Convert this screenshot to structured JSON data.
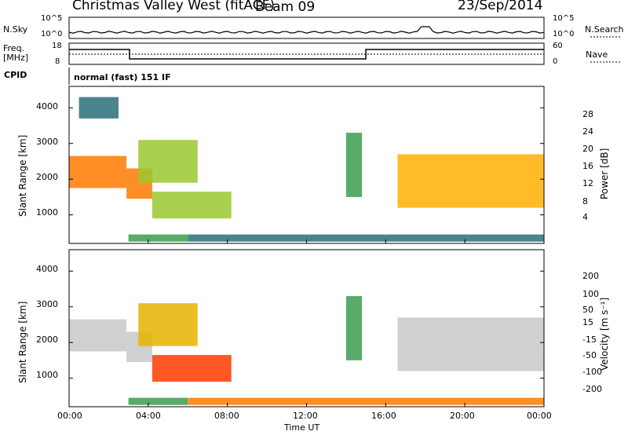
{
  "header": {
    "station": "Christmas Valley West (fitACF)",
    "beam": "Beam 09",
    "date": "23/Sep/2014"
  },
  "strips": {
    "nsky_label": "N.Sky",
    "nsearch_label": "N.Search",
    "noise_ticks": [
      "10^5",
      "10^0"
    ],
    "freq_label_1": "Freq.",
    "freq_label_2": "[MHz]",
    "freq_ticks": [
      "18",
      "8"
    ],
    "nave_label": "Nave",
    "nave_ticks": [
      "60",
      "0"
    ],
    "cpid_label": "CPID",
    "cpid_value": "normal (fast) 151 IF"
  },
  "axes": {
    "ylabel": "Slant Range [km]",
    "xlabel": "Time UT",
    "x_ticks": [
      "00:00",
      "04:00",
      "08:00",
      "12:00",
      "16:00",
      "20:00",
      "00:00"
    ],
    "y_ticks": [
      "1000",
      "2000",
      "3000",
      "4000"
    ]
  },
  "power_scale": {
    "label": "Power [dB]",
    "ticks": [
      "28",
      "24",
      "20",
      "16",
      "12",
      "8",
      "4"
    ],
    "colors": [
      "#e00000",
      "#ff3800",
      "#ff7a00",
      "#ffb000",
      "#e6d200",
      "#9ac830",
      "#3c9c50",
      "#2c6e78",
      "#1c3aa0",
      "#0012ff"
    ]
  },
  "velocity_scale": {
    "label": "Velocity [m s⁻¹]",
    "ticks": [
      "200",
      "100",
      "50",
      "15",
      "-15",
      "-50",
      "-100",
      "-200"
    ],
    "colors": [
      "#0012ff",
      "#2c6e78",
      "#3c9c50",
      "#8ccf3c",
      "#c8c8c8",
      "#e6b400",
      "#ff7a00",
      "#ff3a00",
      "#e00000"
    ]
  },
  "chart_data": [
    {
      "type": "heatmap",
      "title": "Power [dB]",
      "xlabel": "Time UT",
      "ylabel": "Slant Range [km]",
      "xlim": [
        "00:00",
        "24:00"
      ],
      "ylim": [
        200,
        4600
      ],
      "clim": [
        0,
        30
      ],
      "regions": [
        {
          "t": [
            0.0,
            2.9
          ],
          "r": [
            1750,
            2650
          ],
          "power": 24
        },
        {
          "t": [
            2.9,
            4.2
          ],
          "r": [
            1450,
            2300
          ],
          "power": 24
        },
        {
          "t": [
            3.5,
            6.5
          ],
          "r": [
            1900,
            3100
          ],
          "power": 14
        },
        {
          "t": [
            4.2,
            8.2
          ],
          "r": [
            900,
            1650
          ],
          "power": 14
        },
        {
          "t": [
            3.0,
            6.0
          ],
          "r": [
            250,
            450
          ],
          "power": 12
        },
        {
          "t": [
            14.0,
            14.8
          ],
          "r": [
            1500,
            3300
          ],
          "power": 12
        },
        {
          "t": [
            16.6,
            24.0
          ],
          "r": [
            1200,
            2700
          ],
          "power": 22
        },
        {
          "t": [
            0.5,
            2.5
          ],
          "r": [
            3700,
            4300
          ],
          "power": 10
        },
        {
          "t": [
            6.0,
            24.0
          ],
          "r": [
            250,
            450
          ],
          "power": 8
        }
      ]
    },
    {
      "type": "heatmap",
      "title": "Velocity [m s⁻¹]",
      "xlabel": "Time UT",
      "ylabel": "Slant Range [km]",
      "xlim": [
        "00:00",
        "24:00"
      ],
      "ylim": [
        200,
        4600
      ],
      "clim": [
        -200,
        200
      ],
      "regions": [
        {
          "t": [
            0.0,
            2.9
          ],
          "r": [
            1750,
            2650
          ],
          "velocity": 0
        },
        {
          "t": [
            2.9,
            4.2
          ],
          "r": [
            1450,
            2300
          ],
          "velocity": 0
        },
        {
          "t": [
            3.5,
            6.5
          ],
          "r": [
            1900,
            3100
          ],
          "velocity": -30
        },
        {
          "t": [
            4.2,
            8.2
          ],
          "r": [
            900,
            1650
          ],
          "velocity": -80
        },
        {
          "t": [
            3.0,
            6.0
          ],
          "r": [
            250,
            450
          ],
          "velocity": 40
        },
        {
          "t": [
            14.0,
            14.8
          ],
          "r": [
            1500,
            3300
          ],
          "velocity": 40
        },
        {
          "t": [
            16.6,
            24.0
          ],
          "r": [
            1200,
            2700
          ],
          "velocity": 0
        },
        {
          "t": [
            6.0,
            24.0
          ],
          "r": [
            250,
            450
          ],
          "velocity": -60
        }
      ]
    }
  ]
}
